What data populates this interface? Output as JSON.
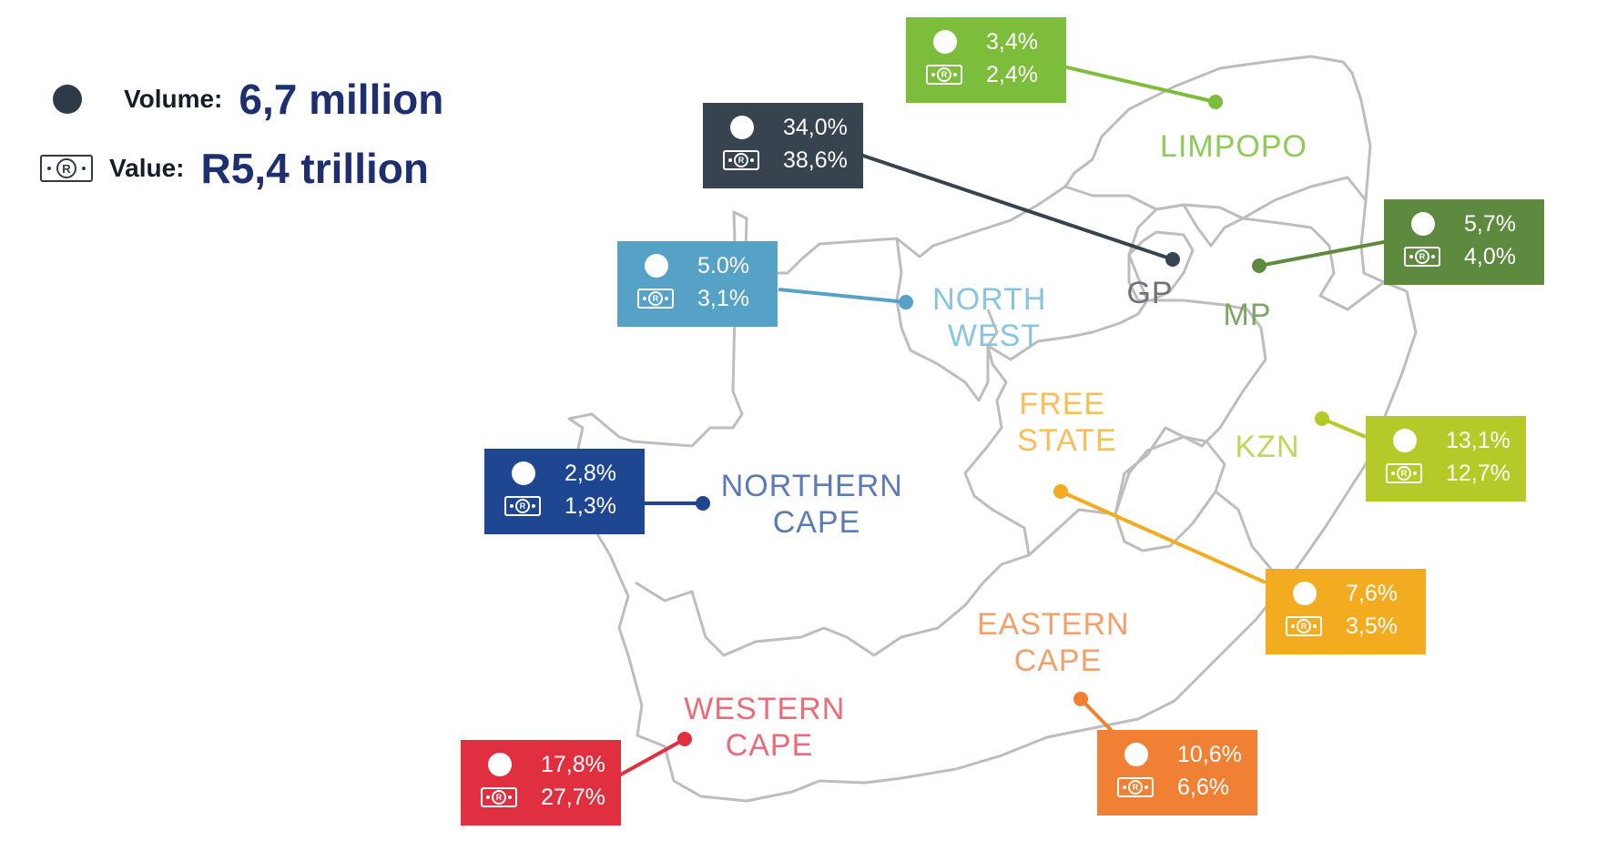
{
  "legend": {
    "volume_label": "Volume:",
    "volume_value": "6,7 million",
    "value_label": "Value:",
    "value_value": "R5,4 trillion",
    "note_symbol": "R"
  },
  "regions": [
    {
      "id": "limpopo",
      "label_lines": [
        "LIMPOPO"
      ],
      "volume": "3,4%",
      "value": "2,4%",
      "color": "#7cbd3b",
      "label_color": "#8fcc57"
    },
    {
      "id": "gauteng",
      "label_lines": [
        "GP"
      ],
      "volume": "34,0%",
      "value": "38,6%",
      "color": "#37434f",
      "label_color": "#6e737a"
    },
    {
      "id": "mpumalanga",
      "label_lines": [
        "MP"
      ],
      "volume": "5,7%",
      "value": "4,0%",
      "color": "#5d8a3e",
      "label_color": "#7ea467"
    },
    {
      "id": "north-west",
      "label_lines": [
        "NORTH",
        "WEST"
      ],
      "volume": "5.0%",
      "value": "3,1%",
      "color": "#56a2c7",
      "label_color": "#89c4e2"
    },
    {
      "id": "northern-cape",
      "label_lines": [
        "NORTHERN",
        "CAPE"
      ],
      "volume": "2,8%",
      "value": "1,3%",
      "color": "#1f4690",
      "label_color": "#5b7bb6"
    },
    {
      "id": "free-state",
      "label_lines": [
        "FREE",
        "STATE"
      ],
      "volume": "7,6%",
      "value": "3,5%",
      "color": "#f3ac20",
      "label_color": "#f7bf55"
    },
    {
      "id": "kzn",
      "label_lines": [
        "KZN"
      ],
      "volume": "13,1%",
      "value": "12,7%",
      "color": "#b5c928",
      "label_color": "#c3d45a"
    },
    {
      "id": "eastern-cape",
      "label_lines": [
        "EASTERN",
        "CAPE"
      ],
      "volume": "10,6%",
      "value": "6,6%",
      "color": "#f08033",
      "label_color": "#f4a06a"
    },
    {
      "id": "western-cape",
      "label_lines": [
        "WESTERN",
        "CAPE"
      ],
      "volume": "17,8%",
      "value": "27,7%",
      "color": "#e0303f",
      "label_color": "#e96c78"
    }
  ]
}
